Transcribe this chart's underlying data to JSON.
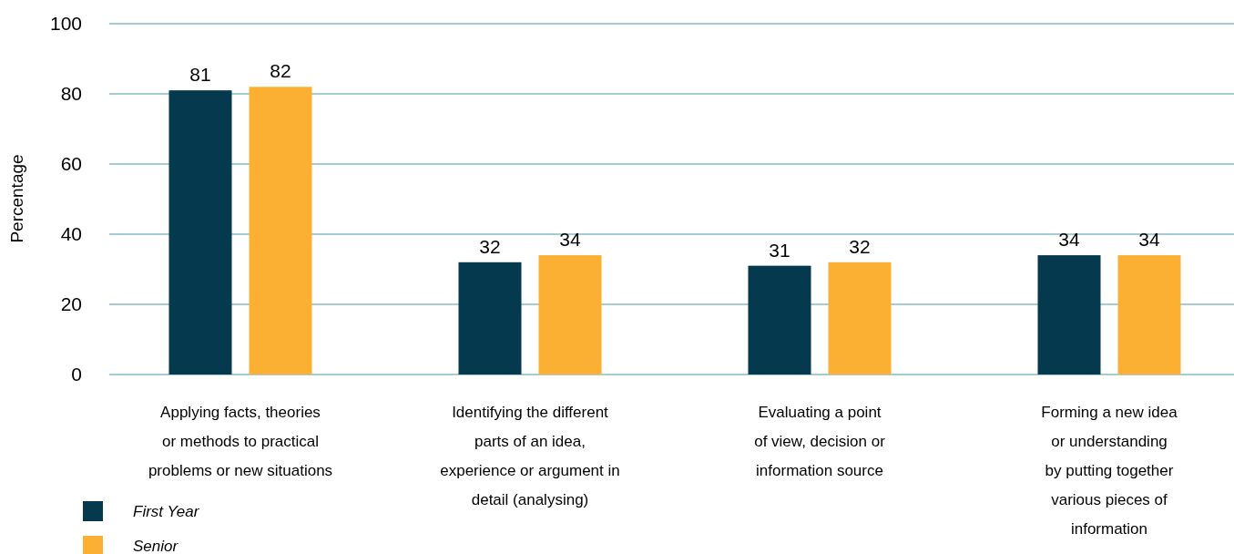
{
  "chart_data": {
    "type": "bar",
    "ylabel": "Percentage",
    "categories": [
      "Applying facts, theories\nor methods to practical\nproblems or new situations",
      "Identifying the different\nparts of an idea,\nexperience or argument in\ndetail (analysing)",
      "Evaluating a point\nof view, decision or\ninformation source",
      "Forming a new idea\nor understanding\nby putting together\nvarious pieces of\ninformation"
    ],
    "series": [
      {
        "name": "First Year",
        "color": "#053a4e",
        "values": [
          81,
          32,
          31,
          34
        ]
      },
      {
        "name": "Senior",
        "color": "#fbb034",
        "values": [
          82,
          34,
          32,
          34
        ]
      }
    ],
    "ylim": [
      0,
      100
    ],
    "yticks": [
      0,
      20,
      40,
      60,
      80,
      100
    ],
    "grid": "y",
    "data_labels": true,
    "legend": "bottom left"
  }
}
